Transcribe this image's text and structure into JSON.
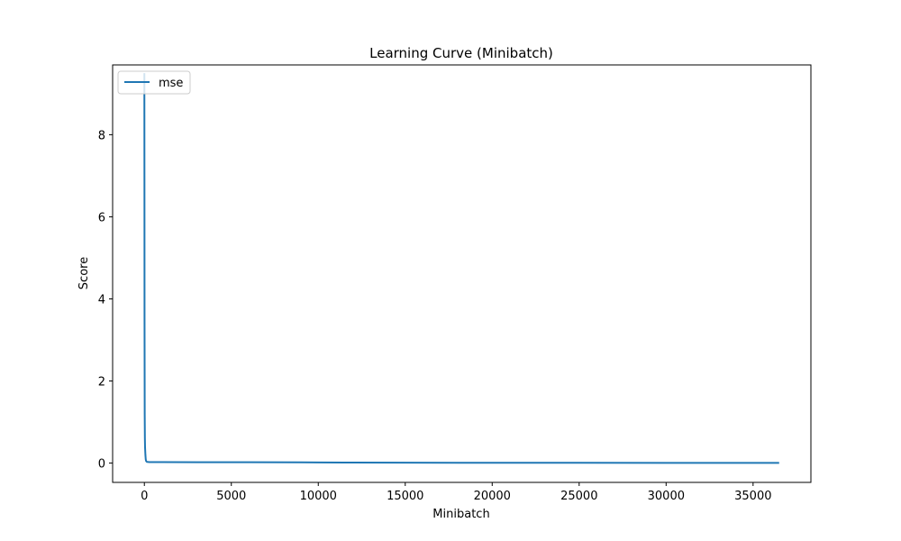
{
  "chart_data": {
    "type": "line",
    "title": "Learning Curve (Minibatch)",
    "xlabel": "Minibatch",
    "ylabel": "Score",
    "xlim": [
      -1825,
      38325
    ],
    "ylim": [
      -0.47,
      9.7
    ],
    "x_ticks": [
      0,
      5000,
      10000,
      15000,
      20000,
      25000,
      30000,
      35000
    ],
    "y_ticks": [
      0,
      2,
      4,
      6,
      8
    ],
    "grid": false,
    "legend": {
      "placement": "upper left",
      "entries": [
        "mse"
      ]
    },
    "series": [
      {
        "name": "mse",
        "color": "#1f77b4",
        "points": [
          [
            0,
            9.5
          ],
          [
            5,
            7.0
          ],
          [
            10,
            3.5
          ],
          [
            20,
            1.2
          ],
          [
            30,
            0.6
          ],
          [
            40,
            0.38
          ],
          [
            60,
            0.2
          ],
          [
            80,
            0.09
          ],
          [
            100,
            0.05
          ],
          [
            150,
            0.03
          ],
          [
            300,
            0.025
          ],
          [
            1000,
            0.024
          ],
          [
            3000,
            0.022
          ],
          [
            6000,
            0.021
          ],
          [
            9000,
            0.02
          ],
          [
            10000,
            0.017
          ],
          [
            12000,
            0.013
          ],
          [
            15000,
            0.01
          ],
          [
            20000,
            0.008
          ],
          [
            25000,
            0.007
          ],
          [
            30000,
            0.006
          ],
          [
            36500,
            0.005
          ]
        ]
      }
    ]
  }
}
